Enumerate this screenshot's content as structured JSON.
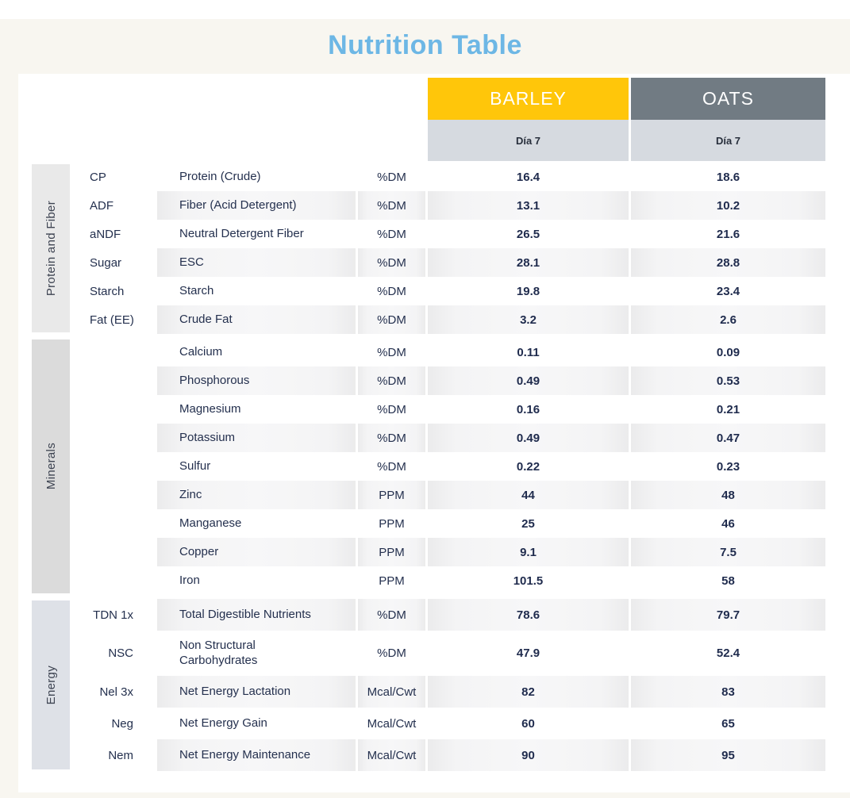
{
  "page_title": "Nutrition Table",
  "colors": {
    "page_background": "#f8f6f0",
    "top_bar": "#ffffff",
    "card_background": "#ffffff",
    "title_text": "#6db7e5",
    "barley_header": "#ffc60a",
    "oats_header": "#717b83",
    "subheader_background": "#d6dae0",
    "body_text_navy": "#24304e",
    "stripe_gray": "#f0f0f1"
  },
  "chart_data": {
    "type": "table",
    "title": "Nutrition Table",
    "products": [
      {
        "name": "BARLEY",
        "subheader": "Día 7",
        "color": "#ffc60a"
      },
      {
        "name": "OATS",
        "subheader": "Día 7",
        "color": "#717b83"
      }
    ],
    "row_groups": [
      {
        "label": "Protein and Fiber",
        "strip_color": "#e9e9e9",
        "abbr_align": "left",
        "rows": [
          {
            "abbr": "CP",
            "name": "Protein (Crude)",
            "unit": "%DM",
            "barley": "16.4",
            "oats": "18.6"
          },
          {
            "abbr": "ADF",
            "name": "Fiber (Acid Detergent)",
            "unit": "%DM",
            "barley": "13.1",
            "oats": "10.2"
          },
          {
            "abbr": "aNDF",
            "name": "Neutral Detergent Fiber",
            "unit": "%DM",
            "barley": "26.5",
            "oats": "21.6"
          },
          {
            "abbr": "Sugar",
            "name": "ESC",
            "unit": "%DM",
            "barley": "28.1",
            "oats": "28.8"
          },
          {
            "abbr": "Starch",
            "name": "Starch",
            "unit": "%DM",
            "barley": "19.8",
            "oats": "23.4"
          },
          {
            "abbr": "Fat (EE)",
            "name": "Crude Fat",
            "unit": "%DM",
            "barley": "3.2",
            "oats": "2.6"
          }
        ]
      },
      {
        "label": "Minerals",
        "strip_color": "#dbdbdb",
        "abbr_align": "left",
        "rows": [
          {
            "abbr": "",
            "name": "Calcium",
            "unit": "%DM",
            "barley": "0.11",
            "oats": "0.09"
          },
          {
            "abbr": "",
            "name": "Phosphorous",
            "unit": "%DM",
            "barley": "0.49",
            "oats": "0.53"
          },
          {
            "abbr": "",
            "name": "Magnesium",
            "unit": "%DM",
            "barley": "0.16",
            "oats": "0.21"
          },
          {
            "abbr": "",
            "name": "Potassium",
            "unit": "%DM",
            "barley": "0.49",
            "oats": "0.47"
          },
          {
            "abbr": "",
            "name": "Sulfur",
            "unit": "%DM",
            "barley": "0.22",
            "oats": "0.23"
          },
          {
            "abbr": "",
            "name": "Zinc",
            "unit": "PPM",
            "barley": "44",
            "oats": "48"
          },
          {
            "abbr": "",
            "name": "Manganese",
            "unit": "PPM",
            "barley": "25",
            "oats": "46"
          },
          {
            "abbr": "",
            "name": "Copper",
            "unit": "PPM",
            "barley": "9.1",
            "oats": "7.5"
          },
          {
            "abbr": "",
            "name": "Iron",
            "unit": "PPM",
            "barley": "101.5",
            "oats": "58"
          }
        ]
      },
      {
        "label": "Energy",
        "strip_color": "#dee1e7",
        "abbr_align": "right",
        "rows": [
          {
            "abbr": "TDN 1x",
            "name": "Total Digestible Nutrients",
            "unit": "%DM",
            "barley": "78.6",
            "oats": "79.7"
          },
          {
            "abbr": "NSC",
            "name": "Non Structural\nCarbohydrates",
            "unit": "%DM",
            "barley": "47.9",
            "oats": "52.4"
          },
          {
            "abbr": "Nel 3x",
            "name": "Net Energy Lactation",
            "unit": "Mcal/Cwt",
            "barley": "82",
            "oats": "83"
          },
          {
            "abbr": "Neg",
            "name": "Net Energy Gain",
            "unit": "Mcal/Cwt",
            "barley": "60",
            "oats": "65"
          },
          {
            "abbr": "Nem",
            "name": "Net Energy Maintenance",
            "unit": "Mcal/Cwt",
            "barley": "90",
            "oats": "95"
          }
        ]
      }
    ]
  }
}
